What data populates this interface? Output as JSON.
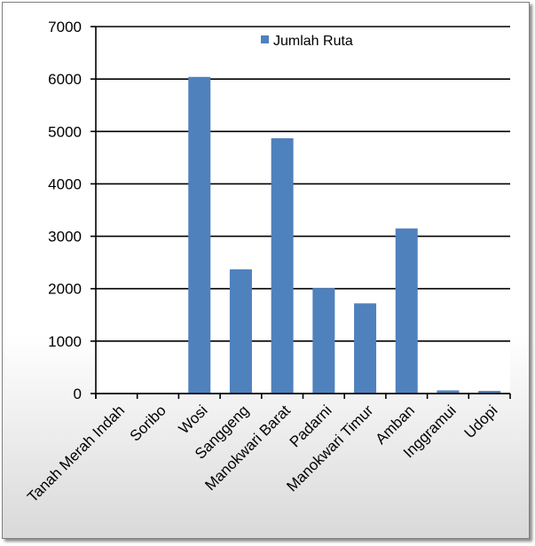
{
  "chart_data": {
    "type": "bar",
    "categories": [
      "Tanah Merah Indah",
      "Soribo",
      "Wosi",
      "Sanggeng",
      "Manokwari Barat",
      "Padarni",
      "Manokwari Timur",
      "Amban",
      "Inggramui",
      "Udopi"
    ],
    "series": [
      {
        "name": "Jumlah Ruta",
        "color": "#4f81bd",
        "values": [
          0,
          0,
          6040,
          2370,
          4870,
          2010,
          1720,
          3150,
          60,
          50
        ]
      }
    ],
    "title": "",
    "xlabel": "",
    "ylabel": "",
    "ylim": [
      0,
      7000
    ],
    "yticks": [
      "0",
      "1000",
      "2000",
      "3000",
      "4000",
      "5000",
      "6000",
      "7000"
    ],
    "grid": true,
    "legend_position": "top-right"
  }
}
